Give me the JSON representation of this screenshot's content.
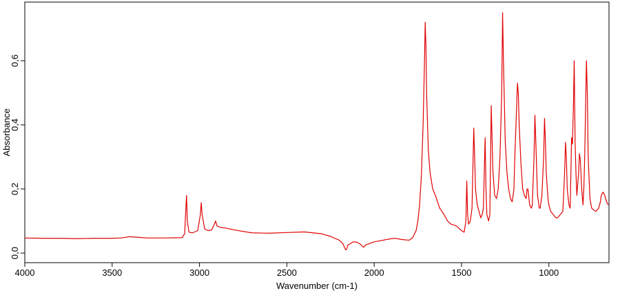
{
  "chart_data": {
    "type": "line",
    "xlabel": "Wavenumber (cm-1)",
    "ylabel": "Absorbance",
    "x": [
      4000,
      3900,
      3800,
      3700,
      3600,
      3500,
      3450,
      3400,
      3350,
      3300,
      3200,
      3100,
      3085,
      3078,
      3074,
      3070,
      3060,
      3040,
      3010,
      2995,
      2990,
      2985,
      2970,
      2950,
      2930,
      2915,
      2908,
      2900,
      2880,
      2850,
      2800,
      2700,
      2600,
      2500,
      2400,
      2300,
      2250,
      2200,
      2180,
      2165,
      2160,
      2150,
      2120,
      2100,
      2080,
      2065,
      2060,
      2050,
      2000,
      1950,
      1900,
      1880,
      1840,
      1800,
      1780,
      1760,
      1750,
      1740,
      1730,
      1720,
      1712,
      1708,
      1704,
      1700,
      1690,
      1680,
      1665,
      1650,
      1625,
      1600,
      1580,
      1560,
      1530,
      1500,
      1485,
      1475,
      1470,
      1465,
      1460,
      1450,
      1440,
      1430,
      1425,
      1420,
      1410,
      1400,
      1390,
      1382,
      1375,
      1365,
      1360,
      1355,
      1345,
      1338,
      1330,
      1325,
      1320,
      1310,
      1300,
      1290,
      1280,
      1270,
      1265,
      1260,
      1250,
      1240,
      1230,
      1220,
      1210,
      1200,
      1195,
      1185,
      1180,
      1175,
      1170,
      1160,
      1150,
      1140,
      1130,
      1125,
      1120,
      1110,
      1100,
      1095,
      1085,
      1080,
      1075,
      1065,
      1055,
      1050,
      1040,
      1030,
      1025,
      1020,
      1015,
      1005,
      1000,
      990,
      975,
      960,
      950,
      935,
      920,
      910,
      905,
      900,
      895,
      885,
      878,
      870,
      865,
      860,
      855,
      850,
      845,
      840,
      830,
      825,
      820,
      812,
      805,
      800,
      795,
      790,
      785,
      780,
      775,
      765,
      755,
      745,
      730,
      715,
      705,
      700,
      690,
      680,
      670,
      660
    ],
    "values": [
      0.047,
      0.046,
      0.046,
      0.045,
      0.046,
      0.046,
      0.047,
      0.051,
      0.049,
      0.047,
      0.047,
      0.048,
      0.06,
      0.14,
      0.18,
      0.1,
      0.065,
      0.063,
      0.07,
      0.12,
      0.157,
      0.12,
      0.075,
      0.07,
      0.072,
      0.09,
      0.1,
      0.085,
      0.08,
      0.078,
      0.072,
      0.063,
      0.062,
      0.064,
      0.066,
      0.06,
      0.052,
      0.04,
      0.03,
      0.012,
      0.01,
      0.025,
      0.035,
      0.034,
      0.028,
      0.02,
      0.018,
      0.025,
      0.035,
      0.04,
      0.045,
      0.046,
      0.042,
      0.04,
      0.048,
      0.07,
      0.1,
      0.15,
      0.24,
      0.4,
      0.6,
      0.72,
      0.65,
      0.5,
      0.32,
      0.25,
      0.2,
      0.18,
      0.14,
      0.12,
      0.1,
      0.09,
      0.085,
      0.07,
      0.065,
      0.1,
      0.225,
      0.12,
      0.09,
      0.1,
      0.14,
      0.39,
      0.3,
      0.2,
      0.15,
      0.13,
      0.11,
      0.12,
      0.14,
      0.36,
      0.2,
      0.12,
      0.1,
      0.12,
      0.46,
      0.35,
      0.25,
      0.18,
      0.17,
      0.2,
      0.3,
      0.5,
      0.75,
      0.6,
      0.35,
      0.25,
      0.2,
      0.17,
      0.16,
      0.2,
      0.3,
      0.45,
      0.53,
      0.5,
      0.4,
      0.28,
      0.2,
      0.18,
      0.17,
      0.2,
      0.2,
      0.15,
      0.14,
      0.15,
      0.3,
      0.43,
      0.35,
      0.18,
      0.14,
      0.14,
      0.18,
      0.3,
      0.42,
      0.35,
      0.25,
      0.17,
      0.15,
      0.13,
      0.12,
      0.11,
      0.11,
      0.12,
      0.13,
      0.25,
      0.345,
      0.3,
      0.2,
      0.15,
      0.14,
      0.36,
      0.34,
      0.45,
      0.6,
      0.35,
      0.25,
      0.18,
      0.25,
      0.31,
      0.29,
      0.2,
      0.15,
      0.2,
      0.3,
      0.45,
      0.6,
      0.5,
      0.3,
      0.17,
      0.14,
      0.135,
      0.13,
      0.14,
      0.16,
      0.18,
      0.19,
      0.18,
      0.16,
      0.15
    ],
    "color": "#e00000",
    "xlim": [
      4000,
      656
    ],
    "ylim": [
      -0.03,
      0.783
    ],
    "xticks": [
      4000,
      3500,
      3000,
      2500,
      2000,
      1500,
      1000
    ],
    "yticks": [
      {
        "value": 0,
        "label": "0,0"
      },
      {
        "value": 0.2,
        "label": "0,2"
      },
      {
        "value": 0.4,
        "label": "0,4"
      },
      {
        "value": 0.6,
        "label": "0,6"
      }
    ]
  }
}
